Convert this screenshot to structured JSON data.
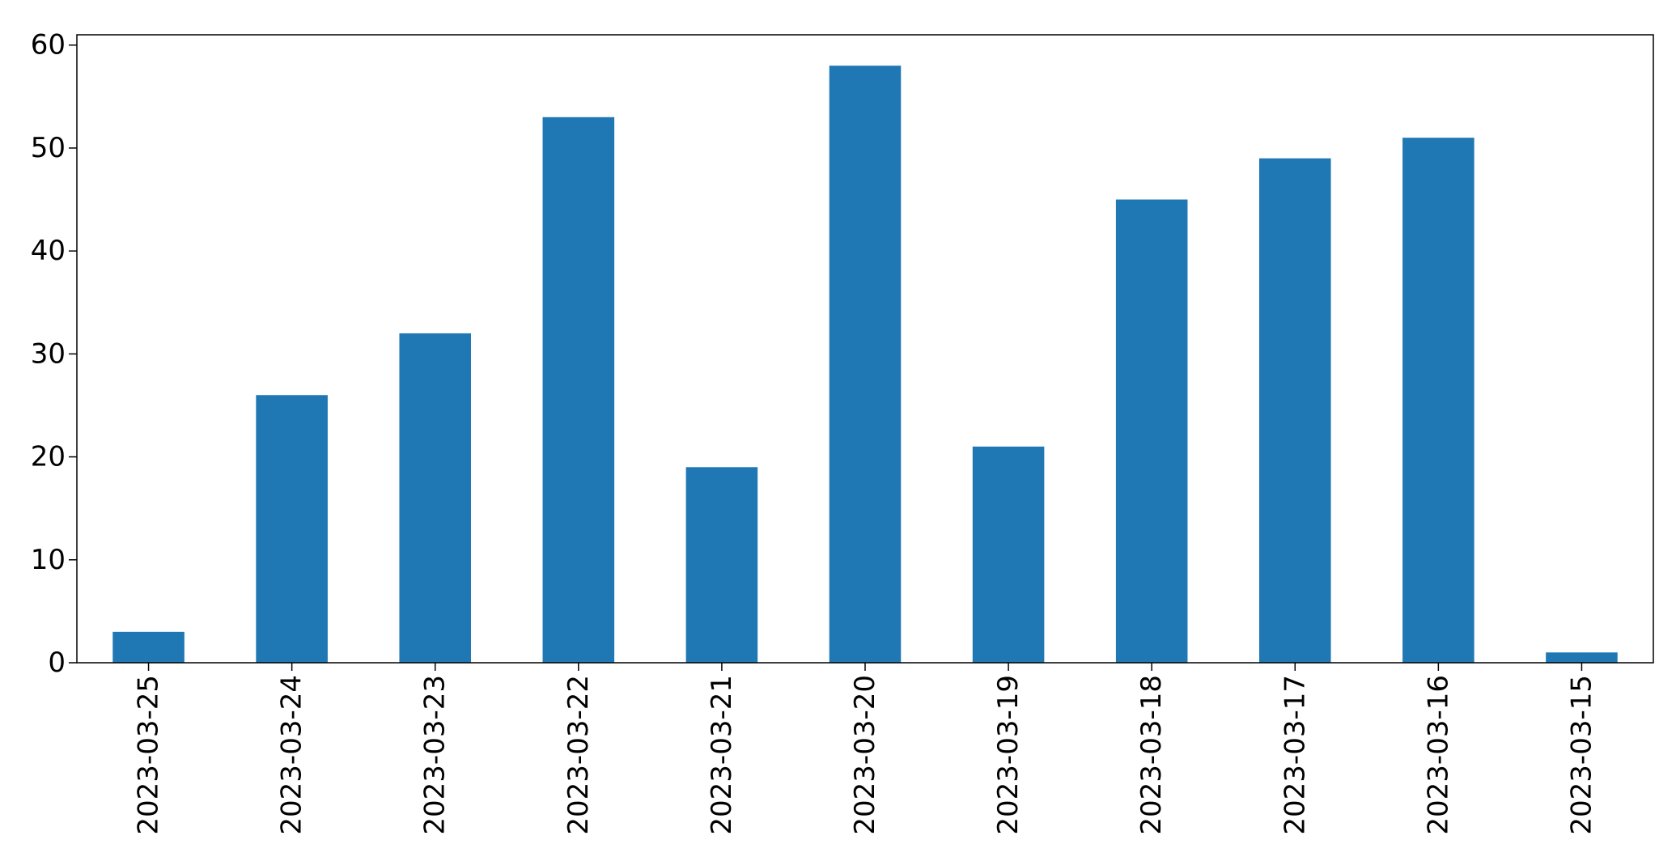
{
  "chart_data": {
    "type": "bar",
    "categories": [
      "2023-03-25",
      "2023-03-24",
      "2023-03-23",
      "2023-03-22",
      "2023-03-21",
      "2023-03-20",
      "2023-03-19",
      "2023-03-18",
      "2023-03-17",
      "2023-03-16",
      "2023-03-15"
    ],
    "values": [
      3,
      26,
      32,
      53,
      19,
      58,
      21,
      45,
      49,
      51,
      1
    ],
    "title": "",
    "xlabel": "",
    "ylabel": "",
    "ylim": [
      0,
      61
    ],
    "yticks": [
      0,
      10,
      20,
      30,
      40,
      50,
      60
    ],
    "grid": false,
    "legend": "none",
    "bar_color": "#1f77b4"
  }
}
